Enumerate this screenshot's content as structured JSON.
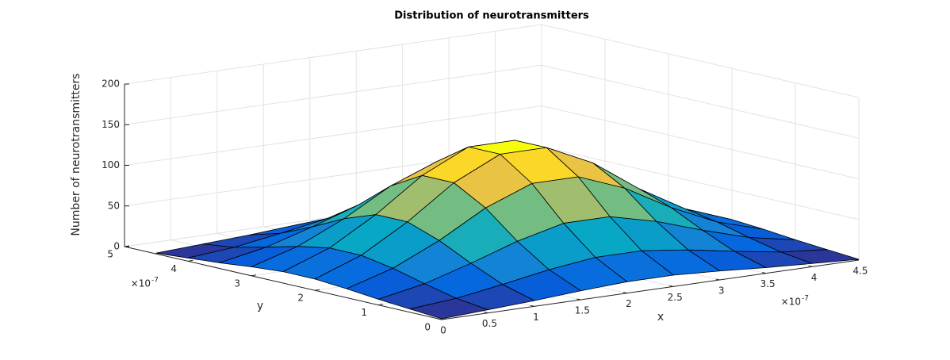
{
  "chart_data": {
    "type": "surface",
    "title": "Distribution of neurotransmitters",
    "x_label": "x",
    "y_label": "y",
    "z_label": "Number of neurotransmitters",
    "x": [
      0,
      0.5,
      1,
      1.5,
      2,
      2.5,
      3,
      3.5,
      4,
      4.5
    ],
    "y": [
      0,
      0.5,
      1,
      1.5,
      2,
      2.5,
      3,
      3.5,
      4,
      4.5
    ],
    "z": [
      [
        1,
        4,
        7,
        11,
        14,
        14,
        11,
        7,
        4,
        1
      ],
      [
        4,
        9,
        18,
        28,
        35,
        35,
        28,
        18,
        9,
        4
      ],
      [
        7,
        18,
        35,
        54,
        68,
        68,
        54,
        35,
        18,
        7
      ],
      [
        11,
        28,
        54,
        86,
        108,
        108,
        86,
        54,
        28,
        11
      ],
      [
        14,
        35,
        68,
        108,
        135,
        135,
        108,
        68,
        35,
        14
      ],
      [
        14,
        35,
        68,
        108,
        135,
        135,
        108,
        68,
        35,
        14
      ],
      [
        11,
        28,
        54,
        86,
        108,
        108,
        86,
        54,
        28,
        11
      ],
      [
        7,
        18,
        35,
        54,
        68,
        68,
        54,
        35,
        18,
        7
      ],
      [
        4,
        9,
        18,
        28,
        35,
        35,
        28,
        18,
        9,
        4
      ],
      [
        1,
        4,
        7,
        11,
        14,
        14,
        11,
        7,
        4,
        1
      ]
    ],
    "xlim": [
      0,
      4.5
    ],
    "xticks": [
      0,
      0.5,
      1,
      1.5,
      2,
      2.5,
      3,
      3.5,
      4,
      4.5
    ],
    "ylim": [
      0,
      5
    ],
    "yticks": [
      0,
      1,
      2,
      3,
      4,
      5
    ],
    "zlim": [
      0,
      200
    ],
    "zticks": [
      0,
      50,
      100,
      150,
      200
    ],
    "x_multiplier": {
      "base": "×10",
      "exponent": "-7"
    },
    "y_multiplier": {
      "base": "×10",
      "exponent": "-7"
    },
    "grid": true,
    "colormap": [
      "#352a87",
      "#0363e1",
      "#1485d4",
      "#06a7c6",
      "#38b99e",
      "#92bf73",
      "#d9ba56",
      "#fcce2e",
      "#f9fb0e"
    ]
  }
}
